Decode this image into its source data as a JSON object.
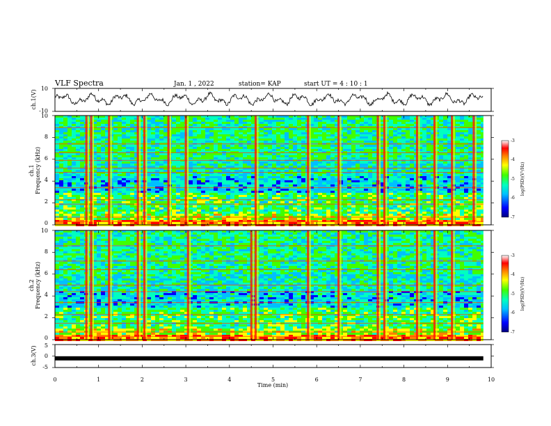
{
  "header": {
    "title": "VLF Spectra",
    "date": "Jan. 1 , 2022",
    "station": "station= KAP",
    "start_ut": "start UT = 4 : 10 : 1"
  },
  "chart_data": [
    {
      "type": "line",
      "name": "ch1-waveform",
      "ylabel": "ch.1(V)",
      "ylim": [
        -10,
        10
      ],
      "ytick_labels": [
        "10",
        "-10"
      ],
      "xlim": [
        0,
        10
      ],
      "x_end": 9.82,
      "approx_mean": 0.5,
      "approx_range": [
        -5,
        7
      ]
    },
    {
      "type": "heatmap",
      "name": "ch1-spectrogram",
      "ylabel": "ch.1 Frequency (kHz)",
      "ylabel_lines": [
        "ch.1",
        "Frequency (kHz)"
      ],
      "ylim": [
        0,
        10
      ],
      "ytick_labels": [
        "0",
        "2",
        "4",
        "6",
        "8",
        "10"
      ],
      "xlim": [
        0,
        10
      ],
      "x_end": 9.82,
      "impulse_times_min": [
        0.72,
        0.83,
        1.24,
        1.9,
        2.05,
        2.6,
        3.0,
        4.6,
        5.8,
        6.5,
        7.4,
        7.55,
        8.3,
        8.7,
        9.1,
        9.6
      ],
      "band_lines_khz": [
        0.3,
        0.7,
        1.9,
        2.3,
        3.4,
        4.8,
        5.2,
        5.9,
        6.6,
        7.4,
        8.9
      ]
    },
    {
      "type": "heatmap",
      "name": "ch2-spectrogram",
      "ylabel": "ch.2 Frequency (kHz)",
      "ylabel_lines": [
        "ch.2",
        "Frequency (kHz)"
      ],
      "ylim": [
        0,
        10
      ],
      "ytick_labels": [
        "0",
        "2",
        "4",
        "6",
        "8",
        "10"
      ],
      "xlim": [
        0,
        10
      ],
      "x_end": 9.82,
      "impulse_times_min": [
        0.72,
        0.83,
        1.24,
        1.9,
        2.05,
        3.05,
        4.5,
        4.6,
        5.8,
        6.5,
        7.4,
        7.55,
        8.3,
        8.7,
        9.1
      ],
      "band_lines_khz": [
        0.3,
        0.7,
        1.5,
        2.3,
        3.4,
        4.4,
        5.0,
        6.4,
        7.2,
        8.6
      ]
    },
    {
      "type": "line",
      "name": "ch3-waveform",
      "ylabel": "ch.3(V)",
      "ylim": [
        -5,
        5
      ],
      "ytick_labels": [
        "5",
        "0",
        "-5"
      ],
      "xlim": [
        0,
        10
      ],
      "x_end": 9.82,
      "approx_value": -1,
      "xlabel": "Time (min)",
      "xtick_labels": [
        "0",
        "1",
        "2",
        "3",
        "4",
        "5",
        "6",
        "7",
        "8",
        "9",
        "10"
      ]
    }
  ],
  "colorbar": {
    "label": "log(PSD)(V²/Hz)",
    "range": [
      -7,
      -3
    ],
    "tick_labels": [
      "-3",
      "-4",
      "-5",
      "-6",
      "-7"
    ],
    "colors": [
      "#000080",
      "#0000ff",
      "#00c0ff",
      "#00ffc0",
      "#40ff00",
      "#ffff00",
      "#ff8000",
      "#ff0000",
      "#ffffff"
    ]
  }
}
